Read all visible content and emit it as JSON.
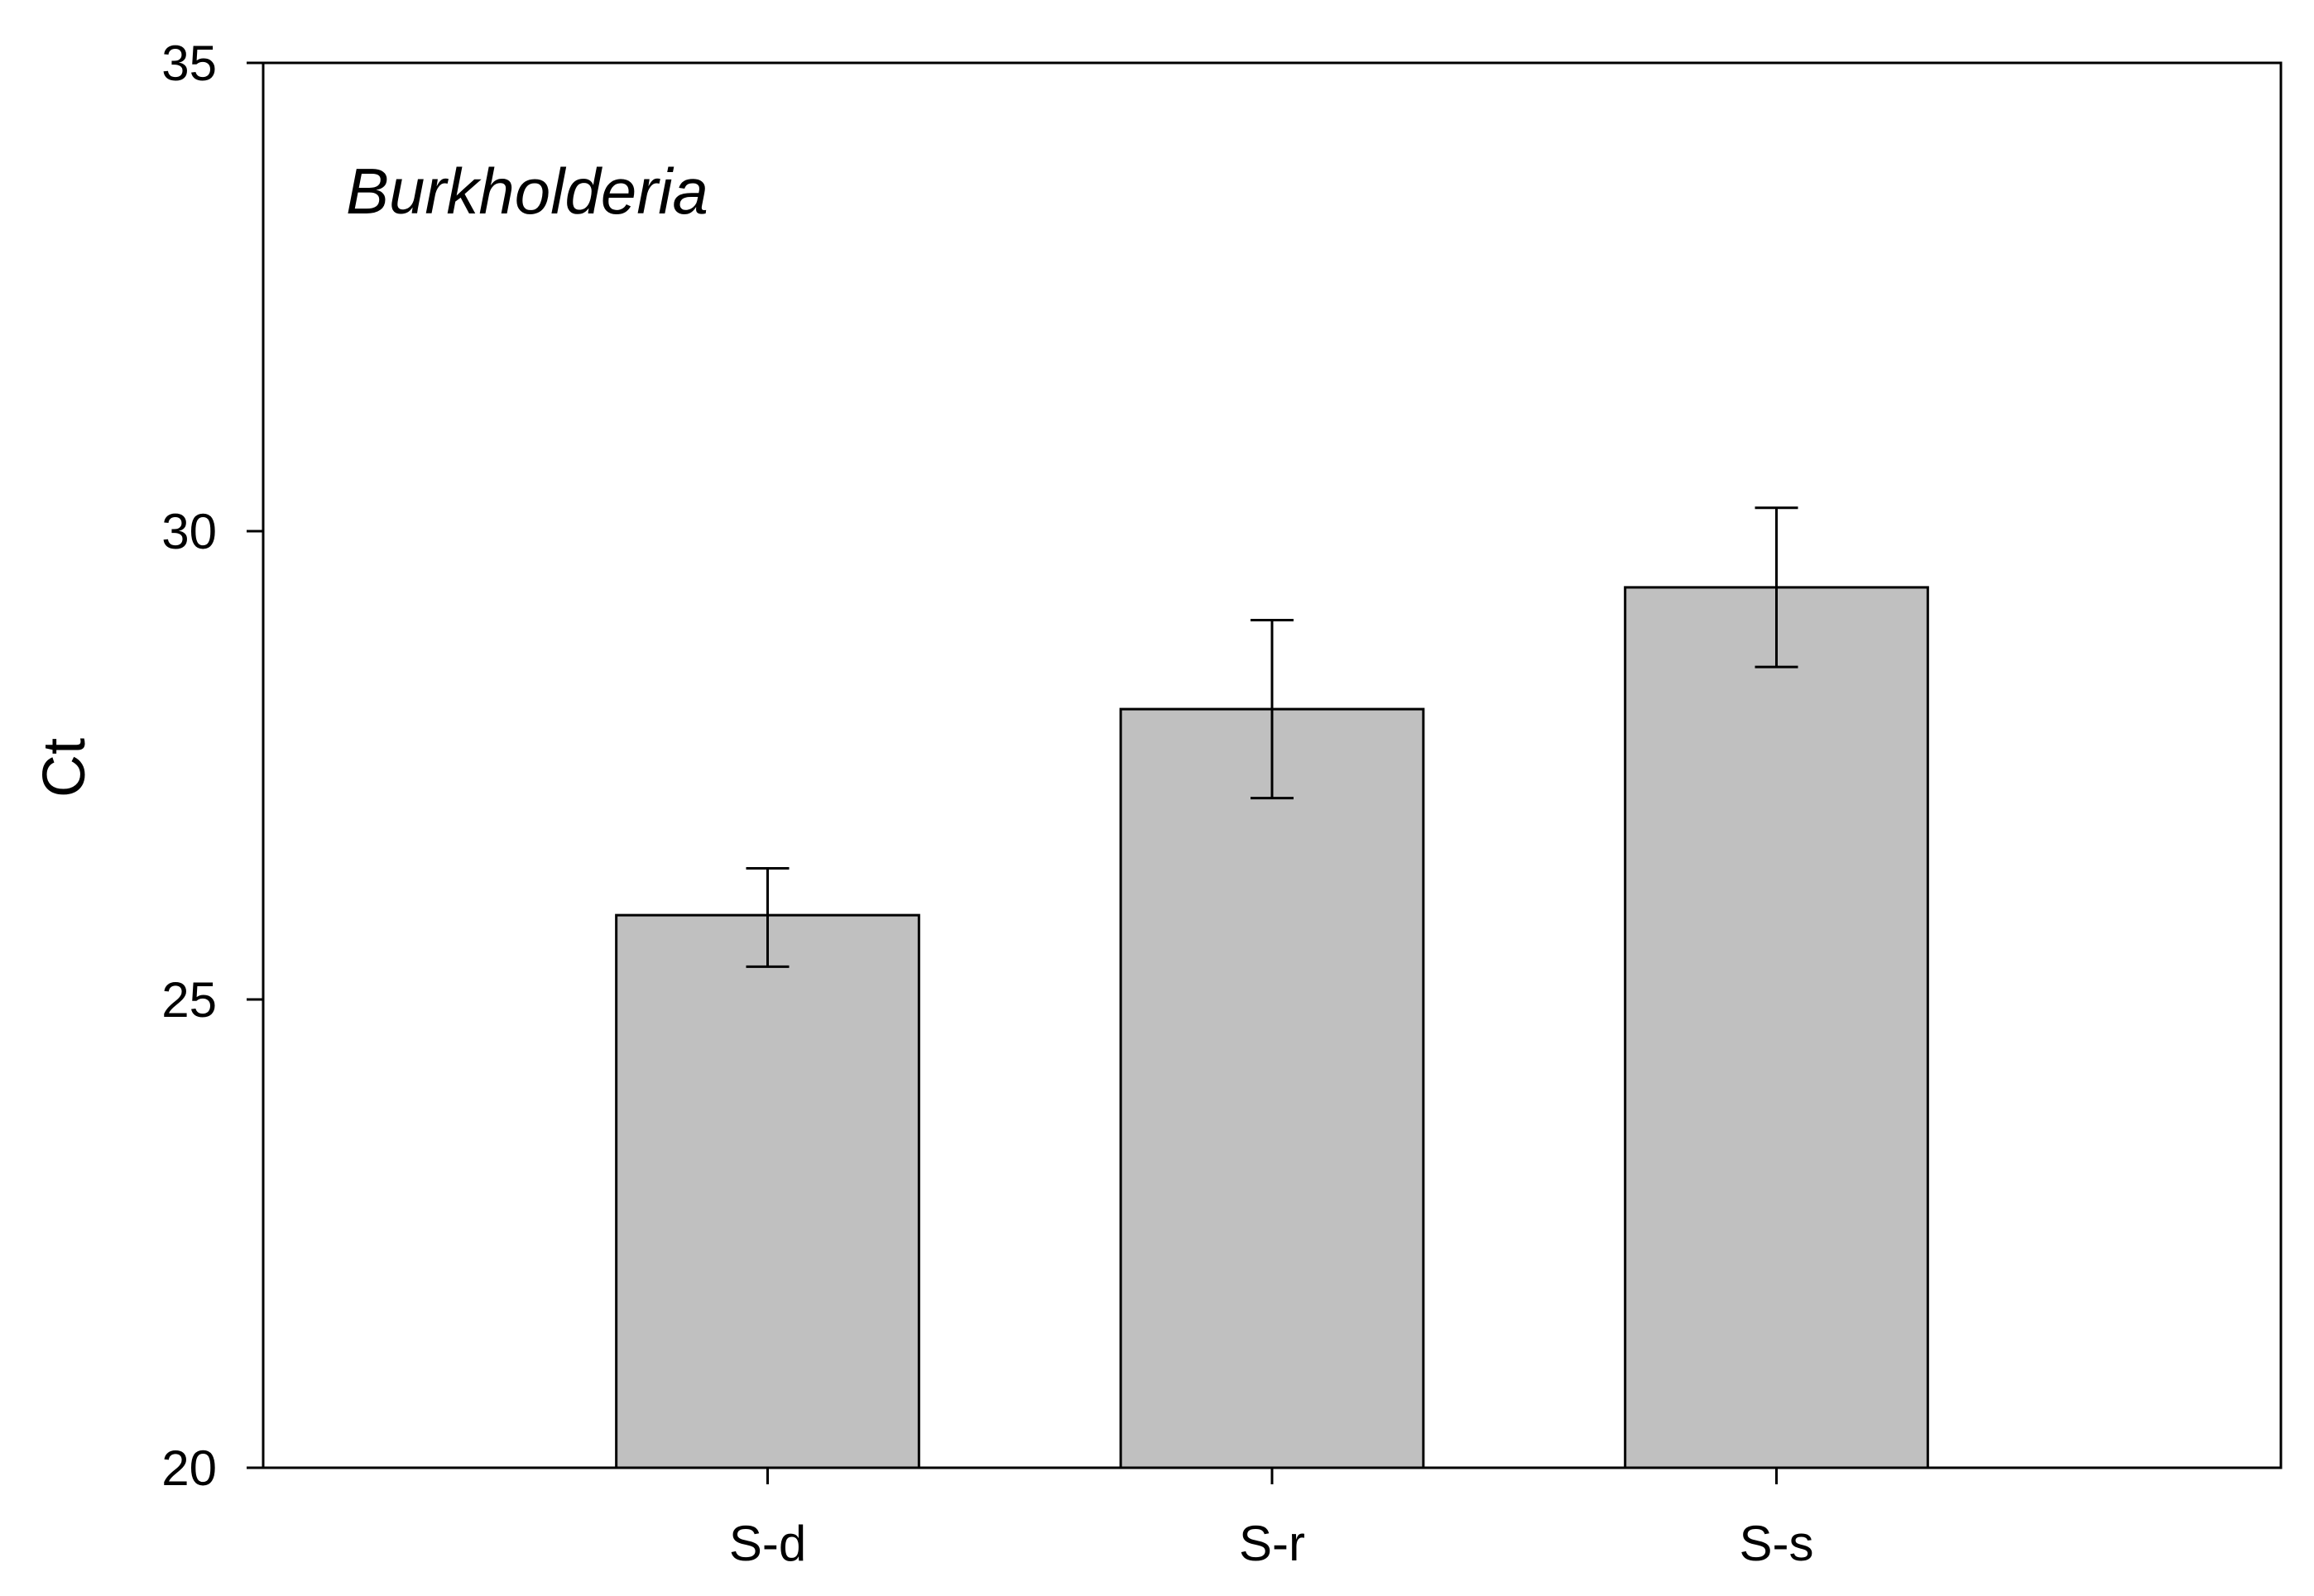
{
  "chart_data": {
    "type": "bar",
    "title": "Burkholderia",
    "title_style": "italic",
    "xlabel": "",
    "ylabel": "Ct",
    "categories": [
      "S-d",
      "S-r",
      "S-s"
    ],
    "values": [
      25.9,
      28.1,
      29.4
    ],
    "error_low": [
      25.35,
      27.15,
      28.55
    ],
    "error_high": [
      26.4,
      29.05,
      30.25
    ],
    "ylim": [
      20,
      35
    ],
    "yticks": [
      "20",
      "25",
      "30",
      "35"
    ],
    "xlim": [
      0,
      4
    ],
    "grid": false,
    "legend": "none",
    "bar_color": "#c0c0c0",
    "edge_color": "#000000"
  }
}
